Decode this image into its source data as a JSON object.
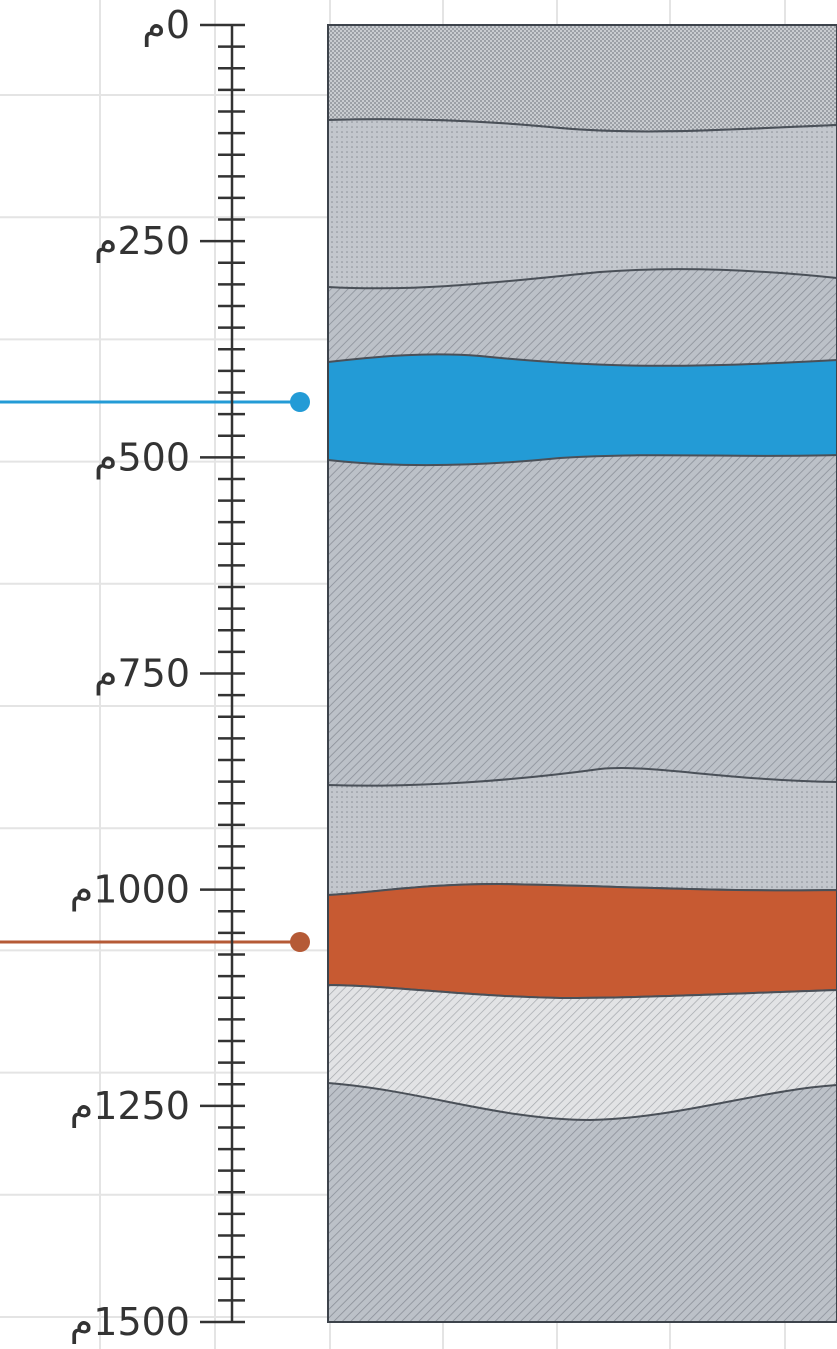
{
  "depth_scale": {
    "labels": [
      "0م",
      "250م",
      "500م",
      "750م",
      "1000م",
      "1250م",
      "1500م"
    ]
  }
}
